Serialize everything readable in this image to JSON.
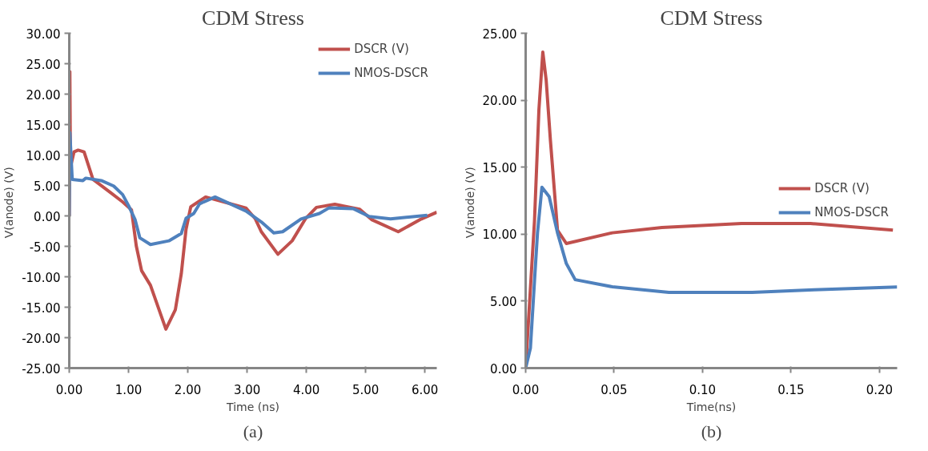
{
  "chart_data": [
    {
      "type": "line",
      "title": "CDM Stress",
      "xlabel": "Time (ns)",
      "ylabel": "V(anode)  (V)",
      "annotations": [
        "(a)"
      ],
      "legend": "top right",
      "grid": false,
      "line_style": "solid",
      "marker": "none",
      "xlim": [
        0,
        6.2
      ],
      "ylim": [
        -25,
        30
      ],
      "xticks": [
        {
          "value": 0,
          "label": "0.00"
        },
        {
          "value": 1,
          "label": "1.00"
        },
        {
          "value": 2,
          "label": "2.00"
        },
        {
          "value": 3,
          "label": "3.00"
        },
        {
          "value": 4,
          "label": "4.00"
        },
        {
          "value": 5,
          "label": "5.00"
        },
        {
          "value": 6,
          "label": "6.00"
        }
      ],
      "yticks": [
        {
          "value": -25,
          "label": "-25.00"
        },
        {
          "value": -20,
          "label": "-20.00"
        },
        {
          "value": -15,
          "label": "-15.00"
        },
        {
          "value": -10,
          "label": "-10.00"
        },
        {
          "value": -5,
          "label": "-5.00"
        },
        {
          "value": 0,
          "label": "0.00"
        },
        {
          "value": 5,
          "label": "5.00"
        },
        {
          "value": 10,
          "label": "10.00"
        },
        {
          "value": 15,
          "label": "15.00"
        },
        {
          "value": 20,
          "label": "20.00"
        },
        {
          "value": 25,
          "label": "25.00"
        },
        {
          "value": 30,
          "label": "30.00"
        }
      ],
      "series": [
        {
          "name": "DSCR (V)",
          "color": "#c0504d",
          "x": [
            0,
            0.01,
            0.02,
            0.08,
            0.15,
            0.25,
            0.4,
            0.7,
            0.9,
            1.05,
            1.13,
            1.22,
            1.37,
            1.63,
            1.79,
            1.89,
            1.97,
            2.05,
            2.3,
            2.98,
            3.14,
            3.24,
            3.52,
            3.76,
            3.99,
            4.17,
            4.48,
            4.9,
            5.1,
            5.55,
            5.94,
            6.2
          ],
          "values": [
            0,
            23.7,
            8,
            10.5,
            10.8,
            10.5,
            6,
            3.8,
            2.3,
            1,
            -4.9,
            -9,
            -11.4,
            -18.6,
            -15.4,
            -9.5,
            -2.2,
            1.5,
            3.1,
            1.3,
            -0.5,
            -2.6,
            -6.3,
            -4.1,
            -0.4,
            1.4,
            1.9,
            1.1,
            -0.6,
            -2.6,
            -0.5,
            0.6
          ]
        },
        {
          "name": "NMOS-DSCR",
          "color": "#4f81bd",
          "x": [
            0,
            0.01,
            0.05,
            0.23,
            0.28,
            0.54,
            0.75,
            0.9,
            1.0,
            1.11,
            1.19,
            1.37,
            1.68,
            1.89,
            1.97,
            2.1,
            2.2,
            2.46,
            2.98,
            3.24,
            3.45,
            3.6,
            3.91,
            4.22,
            4.38,
            4.79,
            5.06,
            5.42,
            6.04
          ],
          "values": [
            0,
            13.7,
            6,
            5.8,
            6.2,
            5.8,
            4.9,
            3.5,
            1.7,
            -0.6,
            -3.6,
            -4.7,
            -4.1,
            -2.9,
            -0.4,
            0.4,
            2,
            3.1,
            0.8,
            -1,
            -2.8,
            -2.6,
            -0.5,
            0.4,
            1.3,
            1.2,
            -0.1,
            -0.5,
            0.1
          ]
        }
      ]
    },
    {
      "type": "line",
      "title": "CDM Stress",
      "xlabel": "Time(ns)",
      "ylabel": "V(anode)  (V)",
      "annotations": [
        "(b)"
      ],
      "legend": "right",
      "grid": false,
      "line_style": "solid",
      "marker": "none",
      "xlim": [
        0,
        0.21
      ],
      "ylim": [
        0,
        25
      ],
      "xticks": [
        {
          "value": 0,
          "label": "0.00"
        },
        {
          "value": 0.05,
          "label": "0.05"
        },
        {
          "value": 0.1,
          "label": "0.10"
        },
        {
          "value": 0.15,
          "label": "0.15"
        },
        {
          "value": 0.2,
          "label": "0.20"
        }
      ],
      "yticks": [
        {
          "value": 0,
          "label": "0.00"
        },
        {
          "value": 5,
          "label": "5.00"
        },
        {
          "value": 10,
          "label": "10.00"
        },
        {
          "value": 15,
          "label": "15.00"
        },
        {
          "value": 20,
          "label": "20.00"
        },
        {
          "value": 25,
          "label": "25.00"
        }
      ],
      "series": [
        {
          "name": "DSCR (V)",
          "color": "#c0504d",
          "x": [
            0,
            0.005,
            0.0075,
            0.0097,
            0.0116,
            0.014,
            0.018,
            0.023,
            0.049,
            0.077,
            0.122,
            0.161,
            0.2076
          ],
          "values": [
            0,
            11,
            19.3,
            23.6,
            21.5,
            17,
            10.3,
            9.3,
            10.1,
            10.5,
            10.8,
            10.8,
            10.3
          ]
        },
        {
          "name": "NMOS-DSCR",
          "color": "#4f81bd",
          "x": [
            0,
            0.0027,
            0.005,
            0.0067,
            0.0092,
            0.0133,
            0.018,
            0.023,
            0.028,
            0.049,
            0.081,
            0.128,
            0.163,
            0.21
          ],
          "values": [
            0,
            1.5,
            6.5,
            10.1,
            13.5,
            12.8,
            10.1,
            7.8,
            6.6,
            6.07,
            5.65,
            5.65,
            5.85,
            6.05
          ]
        }
      ]
    }
  ]
}
